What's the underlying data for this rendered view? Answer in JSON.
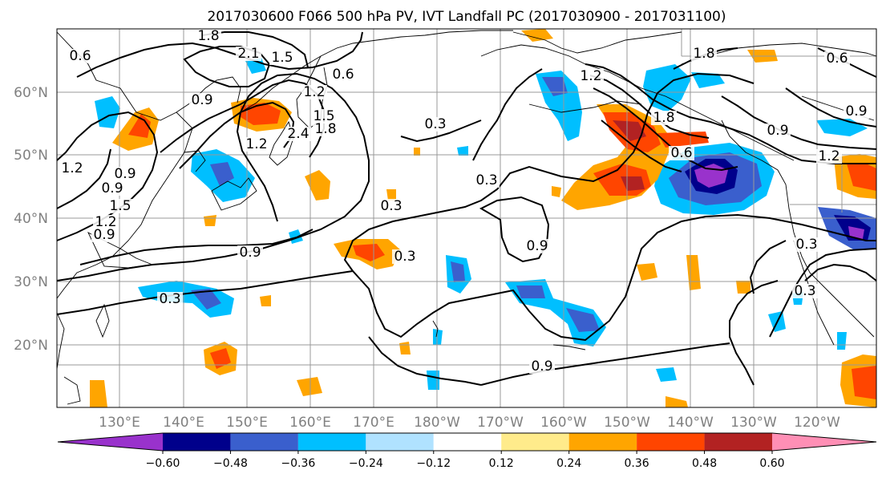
{
  "title": "2017030600 F066 500 hPa PV, IVT Landfall PC (2017030900 - 2017031100)",
  "lat_labels": [
    "60°N",
    "50°N",
    "40°N",
    "30°N",
    "20°N"
  ],
  "lon_labels": [
    "130°E",
    "140°E",
    "150°E",
    "160°E",
    "170°E",
    "180°W",
    "170°W",
    "160°W",
    "150°W",
    "140°W",
    "130°W",
    "120°W"
  ],
  "colorbar": {
    "ticks": [
      "−0.60",
      "−0.48",
      "−0.36",
      "−0.24",
      "−0.12",
      "0.12",
      "0.24",
      "0.36",
      "0.48",
      "0.60"
    ],
    "colors": [
      "#9932cc",
      "#00008b",
      "#3a5fcd",
      "#00bfff",
      "#b0e2ff",
      "#ffffff",
      "#ffeb8b",
      "#ffa500",
      "#ff4500",
      "#b22222",
      "#ff8fb5"
    ]
  },
  "contour_labels": [
    "0.6",
    "1.2",
    "1.8",
    "2.1",
    "1.5",
    "0.9",
    "0.6",
    "1.2",
    "1.5",
    "2.4",
    "1.8",
    "1.2",
    "0.9",
    "0.9",
    "1.5",
    "1.2",
    "0.9",
    "0.9",
    "0.3",
    "0.3",
    "0.3",
    "0.3",
    "0.3",
    "0.9",
    "0.9",
    "1.2",
    "1.8",
    "1.8",
    "0.6",
    "0.6",
    "0.9",
    "1.2",
    "0.9",
    "0.3",
    "0.3",
    "0.3"
  ],
  "colors": {
    "contour": "#000000",
    "grid": "#999999",
    "axis_label": "#808080"
  }
}
